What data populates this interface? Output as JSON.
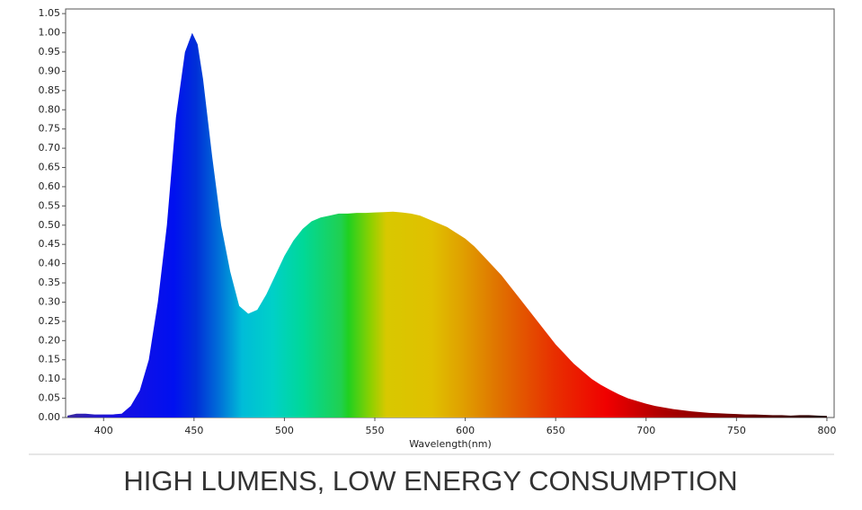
{
  "chart_data": {
    "type": "area",
    "title": "HIGH LUMENS, LOW ENERGY CONSUMPTION",
    "xlabel": "Wavelength(nm)",
    "x": [
      380,
      385,
      390,
      395,
      400,
      405,
      410,
      415,
      420,
      425,
      430,
      435,
      440,
      445,
      449,
      452,
      455,
      460,
      465,
      470,
      475,
      480,
      485,
      490,
      495,
      500,
      505,
      510,
      515,
      520,
      525,
      530,
      535,
      540,
      545,
      550,
      555,
      560,
      565,
      570,
      575,
      580,
      585,
      590,
      595,
      600,
      605,
      610,
      615,
      620,
      625,
      630,
      635,
      640,
      645,
      650,
      655,
      660,
      665,
      670,
      675,
      680,
      685,
      690,
      695,
      700,
      705,
      710,
      715,
      720,
      725,
      730,
      735,
      740,
      745,
      750,
      755,
      760,
      765,
      770,
      775,
      780,
      785,
      790,
      795,
      800
    ],
    "values": [
      0.005,
      0.01,
      0.01,
      0.008,
      0.008,
      0.008,
      0.01,
      0.03,
      0.07,
      0.15,
      0.3,
      0.5,
      0.78,
      0.95,
      1.0,
      0.97,
      0.88,
      0.68,
      0.5,
      0.38,
      0.29,
      0.27,
      0.28,
      0.32,
      0.37,
      0.42,
      0.46,
      0.49,
      0.51,
      0.52,
      0.525,
      0.53,
      0.53,
      0.532,
      0.532,
      0.533,
      0.534,
      0.535,
      0.533,
      0.53,
      0.525,
      0.515,
      0.505,
      0.495,
      0.48,
      0.465,
      0.445,
      0.42,
      0.395,
      0.37,
      0.34,
      0.31,
      0.28,
      0.25,
      0.22,
      0.19,
      0.165,
      0.14,
      0.12,
      0.1,
      0.085,
      0.072,
      0.06,
      0.05,
      0.043,
      0.036,
      0.03,
      0.026,
      0.022,
      0.019,
      0.016,
      0.014,
      0.012,
      0.011,
      0.01,
      0.009,
      0.008,
      0.008,
      0.007,
      0.006,
      0.006,
      0.005,
      0.006,
      0.006,
      0.005,
      0.004
    ],
    "xlim": [
      379,
      804
    ],
    "ylim": [
      0,
      1.062
    ],
    "xticks": [
      400,
      450,
      500,
      550,
      600,
      650,
      700,
      750,
      800
    ],
    "yticks": [
      {
        "value": 0,
        "label": "0.00"
      },
      {
        "value": 0.05,
        "label": "0.05"
      },
      {
        "value": 0.1,
        "label": "0.10"
      },
      {
        "value": 0.15,
        "label": "0.15"
      },
      {
        "value": 0.2,
        "label": "0.20"
      },
      {
        "value": 0.25,
        "label": "0.25"
      },
      {
        "value": 0.3,
        "label": "0.30"
      },
      {
        "value": 0.35,
        "label": "0.35"
      },
      {
        "value": 0.4,
        "label": "0.40"
      },
      {
        "value": 0.45,
        "label": "0.45"
      },
      {
        "value": 0.5,
        "label": "0.50"
      },
      {
        "value": 0.55,
        "label": "0.55"
      },
      {
        "value": 0.6,
        "label": "0.60"
      },
      {
        "value": 0.65,
        "label": "0.65"
      },
      {
        "value": 0.7,
        "label": "0.70"
      },
      {
        "value": 0.75,
        "label": "0.75"
      },
      {
        "value": 0.8,
        "label": "0.80"
      },
      {
        "value": 0.85,
        "label": "0.85"
      },
      {
        "value": 0.9,
        "label": "0.90"
      },
      {
        "value": 0.95,
        "label": "0.95"
      },
      {
        "value": 1.0,
        "label": "1.00"
      },
      {
        "value": 1.05,
        "label": "1.05"
      }
    ]
  }
}
